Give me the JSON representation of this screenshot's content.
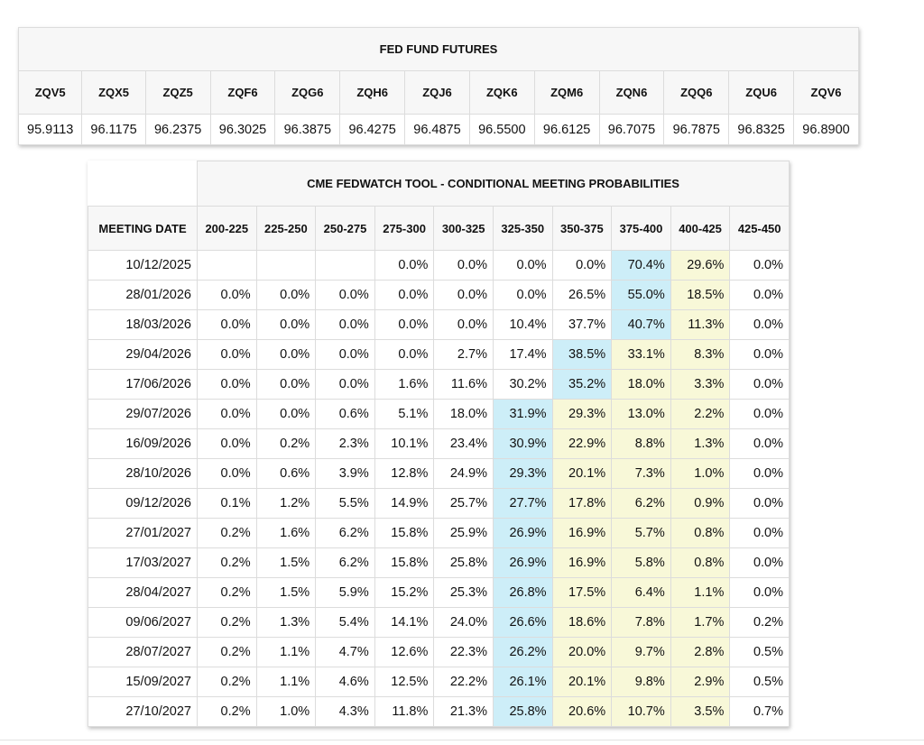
{
  "futures": {
    "title": "FED FUND FUTURES",
    "codes": [
      "ZQV5",
      "ZQX5",
      "ZQZ5",
      "ZQF6",
      "ZQG6",
      "ZQH6",
      "ZQJ6",
      "ZQK6",
      "ZQM6",
      "ZQN6",
      "ZQQ6",
      "ZQU6",
      "ZQV6"
    ],
    "prices": [
      "95.9113",
      "96.1175",
      "96.2375",
      "96.3025",
      "96.3875",
      "96.4275",
      "96.4875",
      "96.5500",
      "96.6125",
      "96.7075",
      "96.7875",
      "96.8325",
      "96.8900"
    ]
  },
  "fedwatch": {
    "title": "CME FEDWATCH TOOL - CONDITIONAL MEETING PROBABILITIES",
    "max_color": "#cdeef8",
    "between_color": "#f8f8d8",
    "header": [
      "MEETING DATE",
      "200-225",
      "225-250",
      "250-275",
      "275-300",
      "300-325",
      "325-350",
      "350-375",
      "375-400",
      "400-425",
      "425-450"
    ],
    "rows": [
      [
        "10/12/2025",
        null,
        null,
        null,
        "0.0%",
        "0.0%",
        "0.0%",
        "0.0%",
        "70.4%",
        "29.6%",
        "0.0%"
      ],
      [
        "28/01/2026",
        "0.0%",
        "0.0%",
        "0.0%",
        "0.0%",
        "0.0%",
        "0.0%",
        "26.5%",
        "55.0%",
        "18.5%",
        "0.0%"
      ],
      [
        "18/03/2026",
        "0.0%",
        "0.0%",
        "0.0%",
        "0.0%",
        "0.0%",
        "10.4%",
        "37.7%",
        "40.7%",
        "11.3%",
        "0.0%"
      ],
      [
        "29/04/2026",
        "0.0%",
        "0.0%",
        "0.0%",
        "0.0%",
        "2.7%",
        "17.4%",
        "38.5%",
        "33.1%",
        "8.3%",
        "0.0%"
      ],
      [
        "17/06/2026",
        "0.0%",
        "0.0%",
        "0.0%",
        "1.6%",
        "11.6%",
        "30.2%",
        "35.2%",
        "18.0%",
        "3.3%",
        "0.0%"
      ],
      [
        "29/07/2026",
        "0.0%",
        "0.0%",
        "0.6%",
        "5.1%",
        "18.0%",
        "31.9%",
        "29.3%",
        "13.0%",
        "2.2%",
        "0.0%"
      ],
      [
        "16/09/2026",
        "0.0%",
        "0.2%",
        "2.3%",
        "10.1%",
        "23.4%",
        "30.9%",
        "22.9%",
        "8.8%",
        "1.3%",
        "0.0%"
      ],
      [
        "28/10/2026",
        "0.0%",
        "0.6%",
        "3.9%",
        "12.8%",
        "24.9%",
        "29.3%",
        "20.1%",
        "7.3%",
        "1.0%",
        "0.0%"
      ],
      [
        "09/12/2026",
        "0.1%",
        "1.2%",
        "5.5%",
        "14.9%",
        "25.7%",
        "27.7%",
        "17.8%",
        "6.2%",
        "0.9%",
        "0.0%"
      ],
      [
        "27/01/2027",
        "0.2%",
        "1.6%",
        "6.2%",
        "15.8%",
        "25.9%",
        "26.9%",
        "16.9%",
        "5.7%",
        "0.8%",
        "0.0%"
      ],
      [
        "17/03/2027",
        "0.2%",
        "1.5%",
        "6.2%",
        "15.8%",
        "25.8%",
        "26.9%",
        "16.9%",
        "5.8%",
        "0.8%",
        "0.0%"
      ],
      [
        "28/04/2027",
        "0.2%",
        "1.5%",
        "5.9%",
        "15.2%",
        "25.3%",
        "26.8%",
        "17.5%",
        "6.4%",
        "1.1%",
        "0.0%"
      ],
      [
        "09/06/2027",
        "0.2%",
        "1.3%",
        "5.4%",
        "14.1%",
        "24.0%",
        "26.6%",
        "18.6%",
        "7.8%",
        "1.7%",
        "0.2%"
      ],
      [
        "28/07/2027",
        "0.2%",
        "1.1%",
        "4.7%",
        "12.6%",
        "22.3%",
        "26.2%",
        "20.0%",
        "9.7%",
        "2.8%",
        "0.5%"
      ],
      [
        "15/09/2027",
        "0.2%",
        "1.1%",
        "4.6%",
        "12.5%",
        "22.2%",
        "26.1%",
        "20.1%",
        "9.8%",
        "2.9%",
        "0.5%"
      ],
      [
        "27/10/2027",
        "0.2%",
        "1.0%",
        "4.3%",
        "11.8%",
        "21.3%",
        "25.8%",
        "20.6%",
        "10.7%",
        "3.5%",
        "0.7%"
      ]
    ]
  }
}
